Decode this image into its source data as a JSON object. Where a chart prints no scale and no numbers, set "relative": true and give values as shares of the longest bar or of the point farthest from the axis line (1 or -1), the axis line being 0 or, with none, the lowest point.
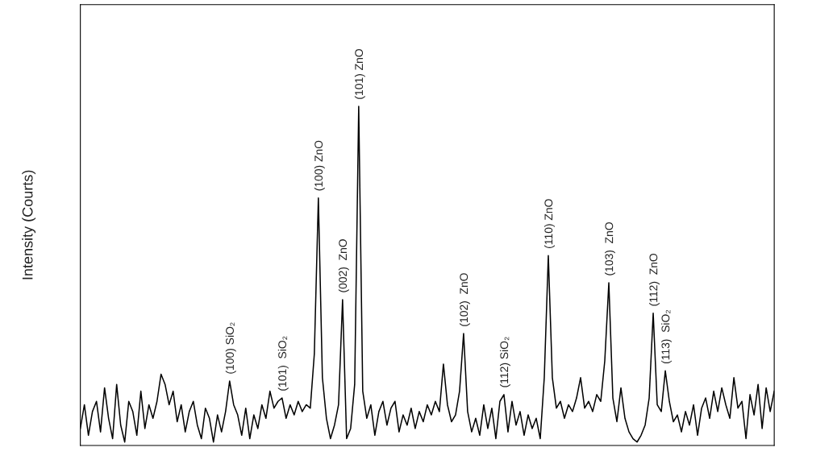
{
  "chart_data": {
    "type": "line",
    "relative": true,
    "ylabel": "Intensity (Courts)",
    "color": "#000000",
    "categories": [
      null,
      null,
      null,
      null,
      null,
      null,
      null,
      null,
      null,
      null,
      null,
      null,
      null,
      null,
      null,
      null,
      null,
      null,
      null,
      null,
      null,
      null,
      null,
      null,
      null,
      null,
      null,
      null,
      null,
      null,
      null,
      null,
      null,
      null,
      null,
      null,
      null,
      null,
      null,
      null,
      null,
      null,
      null,
      null,
      null,
      null,
      null,
      null,
      null,
      null,
      null,
      null,
      null,
      null,
      null,
      null,
      null,
      null,
      null,
      null,
      null,
      null,
      null,
      null,
      null,
      null,
      null,
      null,
      null,
      null,
      null,
      null,
      null,
      null,
      null,
      null,
      null,
      null,
      null,
      null,
      null,
      null,
      null,
      null,
      null,
      null,
      null,
      null,
      null,
      null,
      null,
      null,
      null,
      null,
      null,
      null,
      null,
      null,
      null,
      null,
      null,
      null,
      null,
      null,
      null,
      null,
      null,
      null,
      null,
      null,
      null,
      null,
      null,
      null,
      null,
      null,
      null,
      null,
      null,
      null,
      null,
      null,
      null,
      null,
      null,
      null,
      null,
      null,
      null,
      null,
      null,
      null,
      null,
      null,
      null,
      null,
      null,
      null,
      null,
      null,
      null,
      null,
      null,
      null,
      null,
      null,
      null,
      null,
      null,
      null,
      null,
      null,
      null,
      null,
      null,
      null,
      null,
      null,
      null,
      null,
      null,
      null,
      null,
      null,
      null,
      null,
      null,
      null,
      null,
      null,
      null,
      null,
      null
    ],
    "values": [
      0.05,
      0.12,
      0.03,
      0.1,
      0.13,
      0.04,
      0.17,
      0.08,
      0.02,
      0.18,
      0.06,
      0.01,
      0.13,
      0.1,
      0.03,
      0.16,
      0.05,
      0.12,
      0.08,
      0.13,
      0.21,
      0.18,
      0.12,
      0.16,
      0.07,
      0.12,
      0.04,
      0.1,
      0.13,
      0.06,
      0.02,
      0.11,
      0.08,
      0.01,
      0.09,
      0.04,
      0.1,
      0.19,
      0.12,
      0.09,
      0.03,
      0.11,
      0.02,
      0.09,
      0.05,
      0.12,
      0.08,
      0.16,
      0.11,
      0.13,
      0.14,
      0.08,
      0.12,
      0.09,
      0.13,
      0.1,
      0.12,
      0.11,
      0.27,
      0.73,
      0.2,
      0.08,
      0.02,
      0.06,
      0.12,
      0.43,
      0.02,
      0.05,
      0.18,
      1.0,
      0.16,
      0.08,
      0.12,
      0.03,
      0.1,
      0.13,
      0.06,
      0.11,
      0.13,
      0.04,
      0.09,
      0.06,
      0.11,
      0.05,
      0.1,
      0.07,
      0.12,
      0.09,
      0.13,
      0.1,
      0.24,
      0.12,
      0.07,
      0.09,
      0.16,
      0.33,
      0.1,
      0.04,
      0.08,
      0.03,
      0.12,
      0.05,
      0.11,
      0.02,
      0.13,
      0.15,
      0.04,
      0.13,
      0.06,
      0.1,
      0.03,
      0.09,
      0.05,
      0.08,
      0.02,
      0.2,
      0.56,
      0.2,
      0.11,
      0.13,
      0.08,
      0.12,
      0.1,
      0.14,
      0.2,
      0.11,
      0.13,
      0.1,
      0.15,
      0.13,
      0.25,
      0.48,
      0.14,
      0.07,
      0.17,
      0.08,
      0.04,
      0.02,
      0.01,
      0.03,
      0.06,
      0.14,
      0.39,
      0.12,
      0.1,
      0.22,
      0.13,
      0.07,
      0.09,
      0.04,
      0.1,
      0.06,
      0.12,
      0.03,
      0.11,
      0.14,
      0.08,
      0.16,
      0.1,
      0.17,
      0.12,
      0.08,
      0.2,
      0.11,
      0.13,
      0.02,
      0.15,
      0.09,
      0.18,
      0.05,
      0.17,
      0.1,
      0.16
    ],
    "annotations": [
      {
        "text": "(100) SiO₂",
        "y": 0.19
      },
      {
        "text": "(101)  SiO₂",
        "y": 0.14
      },
      {
        "text": "(100) ZnO",
        "y": 0.73
      },
      {
        "text": "(002)  ZnO",
        "y": 0.43
      },
      {
        "text": "(101) ZnO",
        "y": 1.0
      },
      {
        "text": "(102)  ZnO",
        "y": 0.33
      },
      {
        "text": "(112) SiO₂",
        "y": 0.15
      },
      {
        "text": "(110) ZnO",
        "y": 0.56
      },
      {
        "text": "(103)  ZnO",
        "y": 0.48
      },
      {
        "text": "(112)  ZnO",
        "y": 0.39
      },
      {
        "text": "(113)  SiO₂",
        "y": 0.22
      }
    ]
  }
}
